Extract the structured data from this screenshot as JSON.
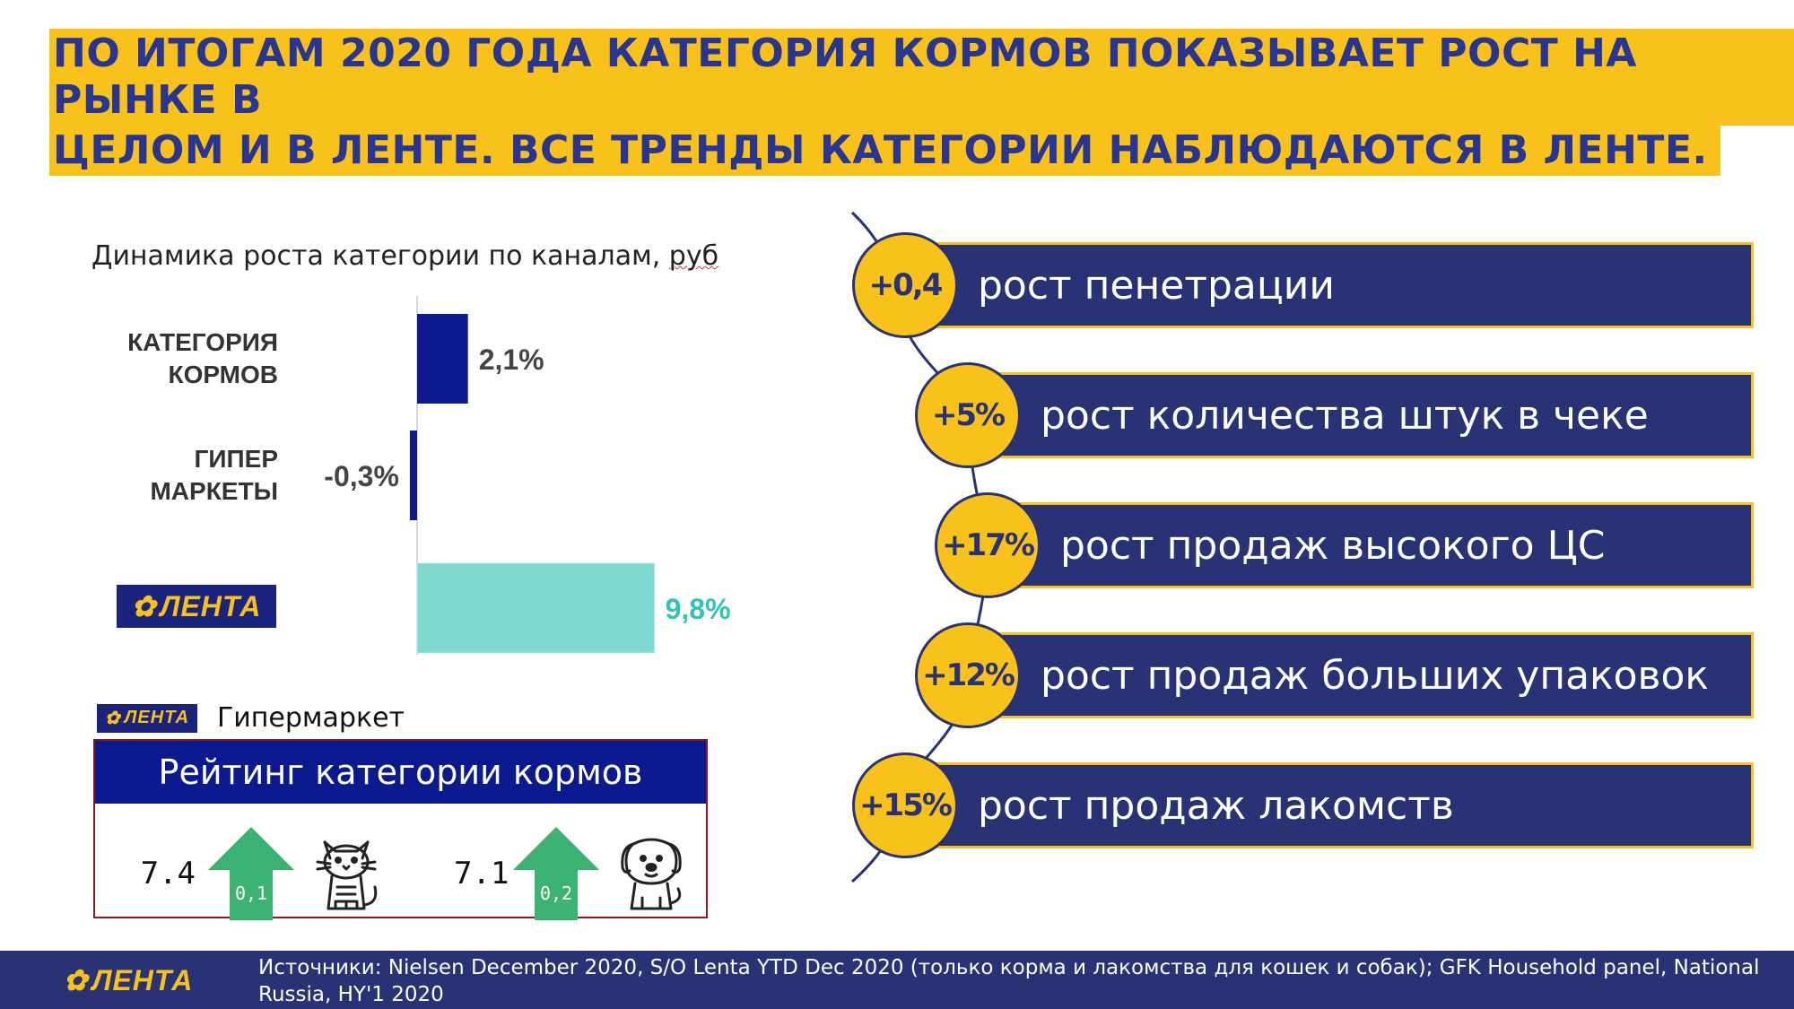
{
  "title": {
    "line1": "ПО ИТОГАМ 2020 ГОДА КАТЕГОРИЯ КОРМОВ ПОКАЗЫВАЕТ РОСТ НА РЫНКЕ В",
    "line2": "ЦЕЛОМ И В ЛЕНТЕ. ВСЕ ТРЕНДЫ КАТЕГОРИИ НАБЛЮДАЮТСЯ В ЛЕНТЕ."
  },
  "chart_title": {
    "main": "Динамика роста категории по каналам, ",
    "unit": "руб"
  },
  "chart_data": {
    "type": "bar",
    "title": "Динамика роста категории по каналам, руб",
    "categories": [
      "КАТЕГОРИЯ КОРМОВ",
      "ГИПЕР МАРКЕТЫ",
      "ЛЕНТА"
    ],
    "category_lines": [
      [
        "КАТЕГОРИЯ",
        "КОРМОВ"
      ],
      [
        "ГИПЕР",
        "МАРКЕТЫ"
      ],
      []
    ],
    "values": [
      2.1,
      -0.3,
      9.8
    ],
    "value_labels": [
      "2,1%",
      "-0,3%",
      "9,8%"
    ],
    "colors": [
      "#0d1a8f",
      "#0d1a8f",
      "#7dd8cf"
    ],
    "label_colors": [
      "#444444",
      "#444444",
      "#2ec4b6"
    ],
    "orientation": "horizontal",
    "grid": false
  },
  "logo": {
    "text": "ЛЕНТА",
    "flower": "✿"
  },
  "rating": {
    "subtitle": "Гипермаркет",
    "title": "Рейтинг категории кормов",
    "items": [
      {
        "value": "7.4",
        "change": "0,1",
        "icon": "cat-icon"
      },
      {
        "value": "7.1",
        "change": "0,2",
        "icon": "dog-icon"
      }
    ],
    "arrow_color": "#3cb371"
  },
  "metrics": [
    {
      "value": "+0,4",
      "label": "рост пенетрации"
    },
    {
      "value": "+5%",
      "label": "рост количества штук в чеке"
    },
    {
      "value": "+17%",
      "label": "рост продаж высокого ЦС"
    },
    {
      "value": "+12%",
      "label": "рост продаж больших упаковок"
    },
    {
      "value": "+15%",
      "label": "рост продаж лакомств"
    }
  ],
  "footer": {
    "source": "Источники: Nielsen December 2020, S/O Lenta YTD Dec 2020 (только корма и лакомства для кошек и собак); GFK Household panel, National Russia, HY'1 2020"
  },
  "colors": {
    "navy": "#283275",
    "deep_blue": "#0d1a8f",
    "yellow": "#f9c21a",
    "teal": "#2ec4b6"
  }
}
